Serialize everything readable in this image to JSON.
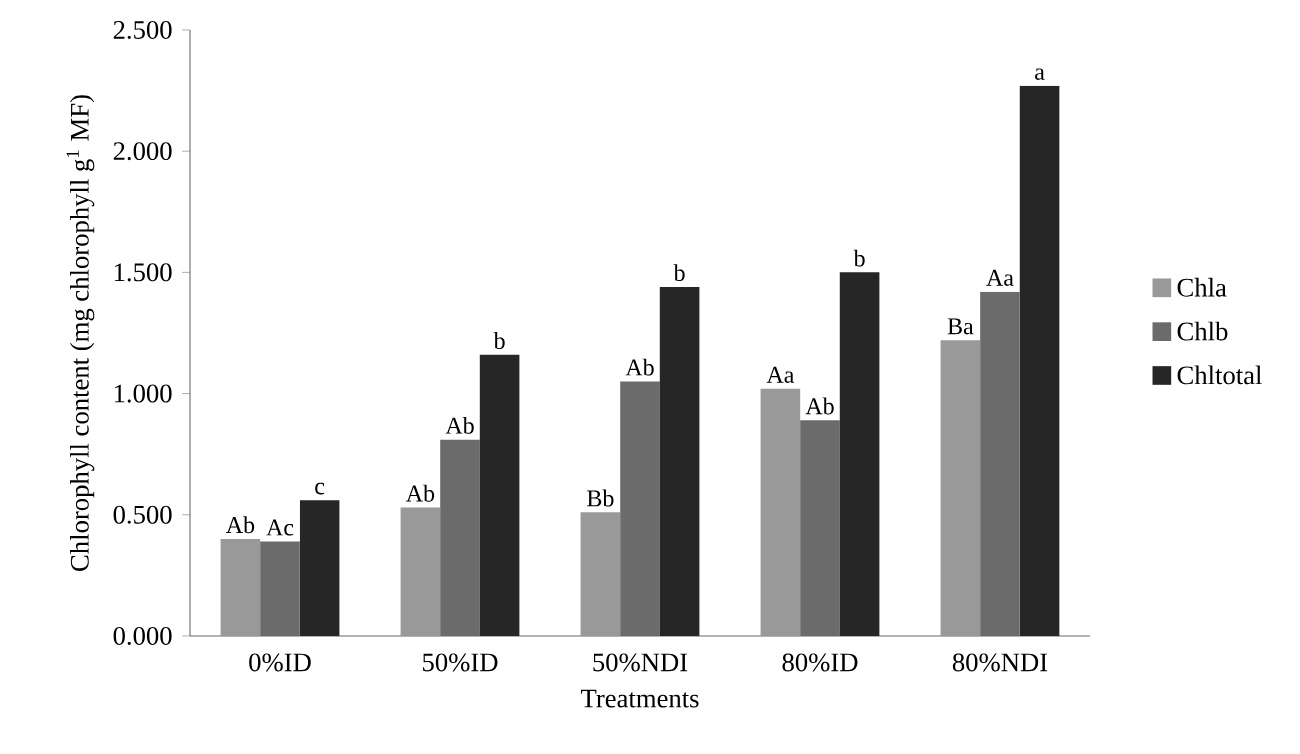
{
  "chart_data": {
    "type": "bar",
    "xlabel": "Treatments",
    "ylabel": "Chlorophyll content (mg chlorophyll g$^{1}$ MF)",
    "categories": [
      "0%ID",
      "50%ID",
      "50%NDI",
      "80%ID",
      "80%NDI"
    ],
    "series": [
      {
        "name": "Chla",
        "color": "#999999",
        "values": [
          0.4,
          0.53,
          0.51,
          1.02,
          1.22
        ],
        "value_labels": [
          "Ab",
          "Ab",
          "Bb",
          "Aa",
          "Ba"
        ]
      },
      {
        "name": "Chlb",
        "color": "#6b6b6b",
        "values": [
          0.39,
          0.81,
          1.05,
          0.89,
          1.42
        ],
        "value_labels": [
          "Ac",
          "Ab",
          "Ab",
          "Ab",
          "Aa"
        ]
      },
      {
        "name": "Chltotal",
        "color": "#262626",
        "values": [
          0.56,
          1.16,
          1.44,
          1.5,
          2.27
        ],
        "value_labels": [
          "c",
          "b",
          "b",
          "b",
          "a"
        ]
      }
    ],
    "ylim": [
      0,
      2.5
    ],
    "yticks": [
      {
        "value": 0,
        "label": "0.000"
      },
      {
        "value": 0.5,
        "label": "0.500"
      },
      {
        "value": 1,
        "label": "1.000"
      },
      {
        "value": 1.5,
        "label": "1.500"
      },
      {
        "value": 2,
        "label": "2.000"
      },
      {
        "value": 2.5,
        "label": "2.500"
      }
    ],
    "grid": false,
    "legend": "right"
  }
}
